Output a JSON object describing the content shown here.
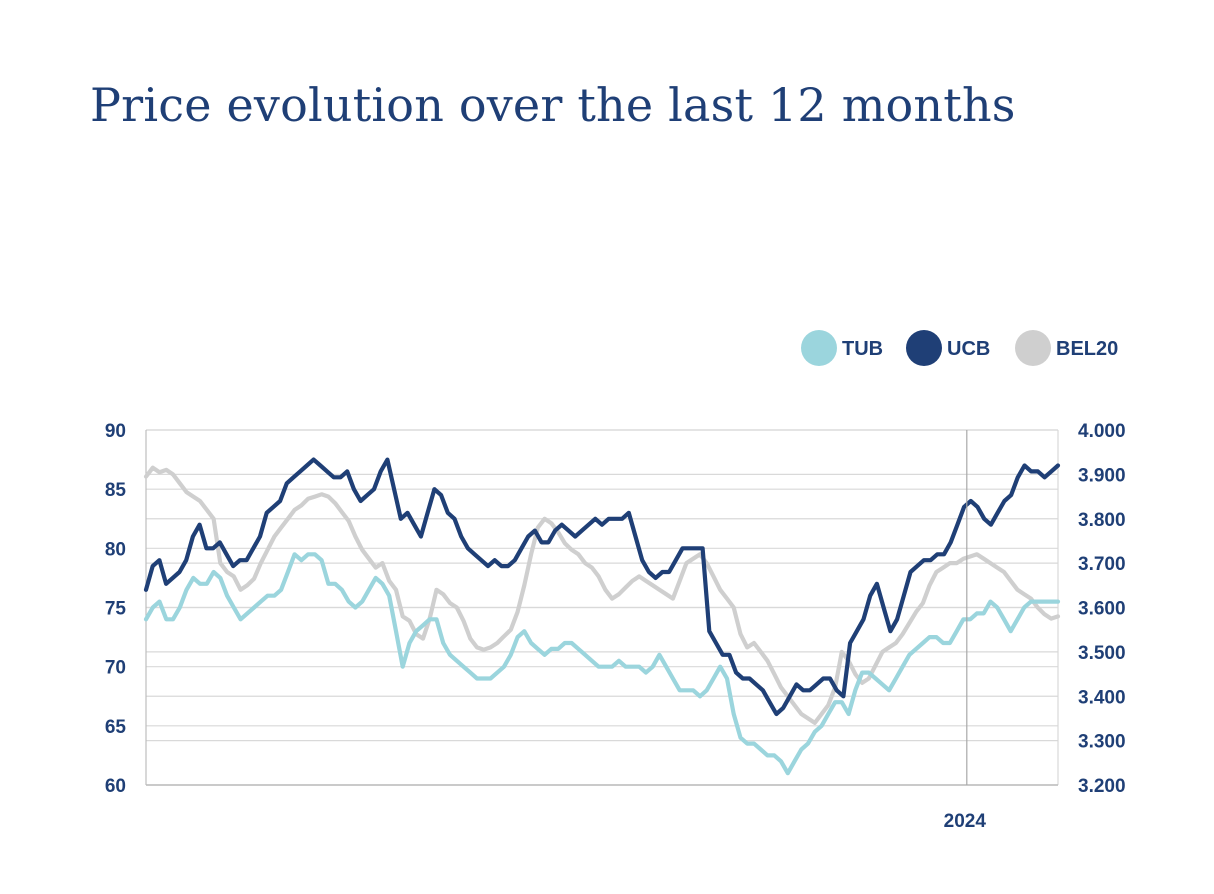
{
  "title": "Price evolution over the last 12 months",
  "colors": {
    "text": "#1f3f76",
    "grid": "#d9d9d9",
    "axis": "#bdbdbd"
  },
  "chart_data": {
    "type": "line",
    "title": "Price evolution over the last 12 months",
    "grid": true,
    "legend_position": "top-right",
    "x_axis": {
      "tick_labels": [
        "2024"
      ],
      "tick_positions_fraction": [
        0.9
      ]
    },
    "y_left": {
      "min": 60,
      "max": 90,
      "ticks": [
        60,
        65,
        70,
        75,
        80,
        85,
        90
      ],
      "tick_labels": [
        "60",
        "65",
        "70",
        "75",
        "80",
        "85",
        "90"
      ]
    },
    "y_right": {
      "min": 3200,
      "max": 4000,
      "ticks": [
        3200,
        3300,
        3400,
        3500,
        3600,
        3700,
        3800,
        3900,
        4000
      ],
      "tick_labels": [
        "3.200",
        "3.300",
        "3.400",
        "3.500",
        "3.600",
        "3.700",
        "3.800",
        "3.900",
        "4.000"
      ]
    },
    "series": [
      {
        "name": "BEL20",
        "axis": "right",
        "color": "#cfcfcf",
        "values": [
          3895,
          3915,
          3905,
          3910,
          3900,
          3880,
          3860,
          3850,
          3840,
          3820,
          3800,
          3700,
          3680,
          3670,
          3640,
          3650,
          3665,
          3700,
          3730,
          3760,
          3780,
          3800,
          3820,
          3830,
          3845,
          3850,
          3855,
          3850,
          3835,
          3815,
          3795,
          3760,
          3730,
          3710,
          3690,
          3700,
          3660,
          3640,
          3580,
          3570,
          3540,
          3530,
          3575,
          3640,
          3630,
          3610,
          3600,
          3570,
          3530,
          3510,
          3505,
          3510,
          3520,
          3535,
          3550,
          3590,
          3650,
          3720,
          3780,
          3800,
          3790,
          3770,
          3745,
          3730,
          3720,
          3700,
          3690,
          3670,
          3640,
          3620,
          3630,
          3645,
          3660,
          3670,
          3660,
          3650,
          3640,
          3630,
          3620,
          3660,
          3700,
          3710,
          3720,
          3700,
          3670,
          3640,
          3620,
          3600,
          3540,
          3510,
          3520,
          3500,
          3480,
          3450,
          3420,
          3400,
          3380,
          3360,
          3350,
          3340,
          3360,
          3380,
          3420,
          3500,
          3480,
          3450,
          3430,
          3440,
          3470,
          3500,
          3510,
          3520,
          3540,
          3565,
          3590,
          3610,
          3650,
          3680,
          3690,
          3700,
          3700,
          3710,
          3715,
          3720,
          3710,
          3700,
          3690,
          3680,
          3660,
          3640,
          3630,
          3620,
          3600,
          3585,
          3575,
          3580
        ]
      },
      {
        "name": "UCB",
        "axis": "left",
        "color": "#1f3f76",
        "values": [
          76.5,
          78.5,
          79,
          77,
          77.5,
          78,
          79,
          81,
          82,
          80,
          80,
          80.5,
          79.5,
          78.5,
          79,
          79,
          80,
          81,
          83,
          83.5,
          84,
          85.5,
          86,
          86.5,
          87,
          87.5,
          87,
          86.5,
          86,
          86,
          86.5,
          85,
          84,
          84.5,
          85,
          86.5,
          87.5,
          85,
          82.5,
          83,
          82,
          81,
          83,
          85,
          84.5,
          83,
          82.5,
          81,
          80,
          79.5,
          79,
          78.5,
          79,
          78.5,
          78.5,
          79,
          80,
          81,
          81.5,
          80.5,
          80.5,
          81.5,
          82,
          81.5,
          81,
          81.5,
          82,
          82.5,
          82,
          82.5,
          82.5,
          82.5,
          83,
          81,
          79,
          78,
          77.5,
          78,
          78,
          79,
          80,
          80,
          80,
          80,
          73,
          72,
          71,
          71,
          69.5,
          69,
          69,
          68.5,
          68,
          67,
          66,
          66.5,
          67.5,
          68.5,
          68,
          68,
          68.5,
          69,
          69,
          68,
          67.5,
          72,
          73,
          74,
          76,
          77,
          75,
          73,
          74,
          76,
          78,
          78.5,
          79,
          79,
          79.5,
          79.5,
          80.5,
          82,
          83.5,
          84,
          83.5,
          82.5,
          82,
          83,
          84,
          84.5,
          86,
          87,
          86.5,
          86.5,
          86,
          86.5,
          87
        ]
      },
      {
        "name": "TUB",
        "axis": "left",
        "color": "#9bd5dd",
        "values": [
          74,
          75,
          75.5,
          74,
          74,
          75,
          76.5,
          77.5,
          77,
          77,
          78,
          77.5,
          76,
          75,
          74,
          74.5,
          75,
          75.5,
          76,
          76,
          76.5,
          78,
          79.5,
          79,
          79.5,
          79.5,
          79,
          77,
          77,
          76.5,
          75.5,
          75,
          75.5,
          76.5,
          77.5,
          77,
          76,
          73,
          70,
          72,
          73,
          73.5,
          74,
          74,
          72,
          71,
          70.5,
          70,
          69.5,
          69,
          69,
          69,
          69.5,
          70,
          71,
          72.5,
          73,
          72,
          71.5,
          71,
          71.5,
          71.5,
          72,
          72,
          71.5,
          71,
          70.5,
          70,
          70,
          70,
          70.5,
          70,
          70,
          70,
          69.5,
          70,
          71,
          70,
          69,
          68,
          68,
          68,
          67.5,
          68,
          69,
          70,
          69,
          66,
          64,
          63.5,
          63.5,
          63,
          62.5,
          62.5,
          62,
          61,
          62,
          63,
          63.5,
          64.5,
          65,
          66,
          67,
          67,
          66,
          68,
          69.5,
          69.5,
          69,
          68.5,
          68,
          69,
          70,
          71,
          71.5,
          72,
          72.5,
          72.5,
          72,
          72,
          73,
          74,
          74,
          74.5,
          74.5,
          75.5,
          75,
          74,
          73,
          74,
          75,
          75.5,
          75.5,
          75.5,
          75.5,
          75.5
        ]
      }
    ]
  }
}
